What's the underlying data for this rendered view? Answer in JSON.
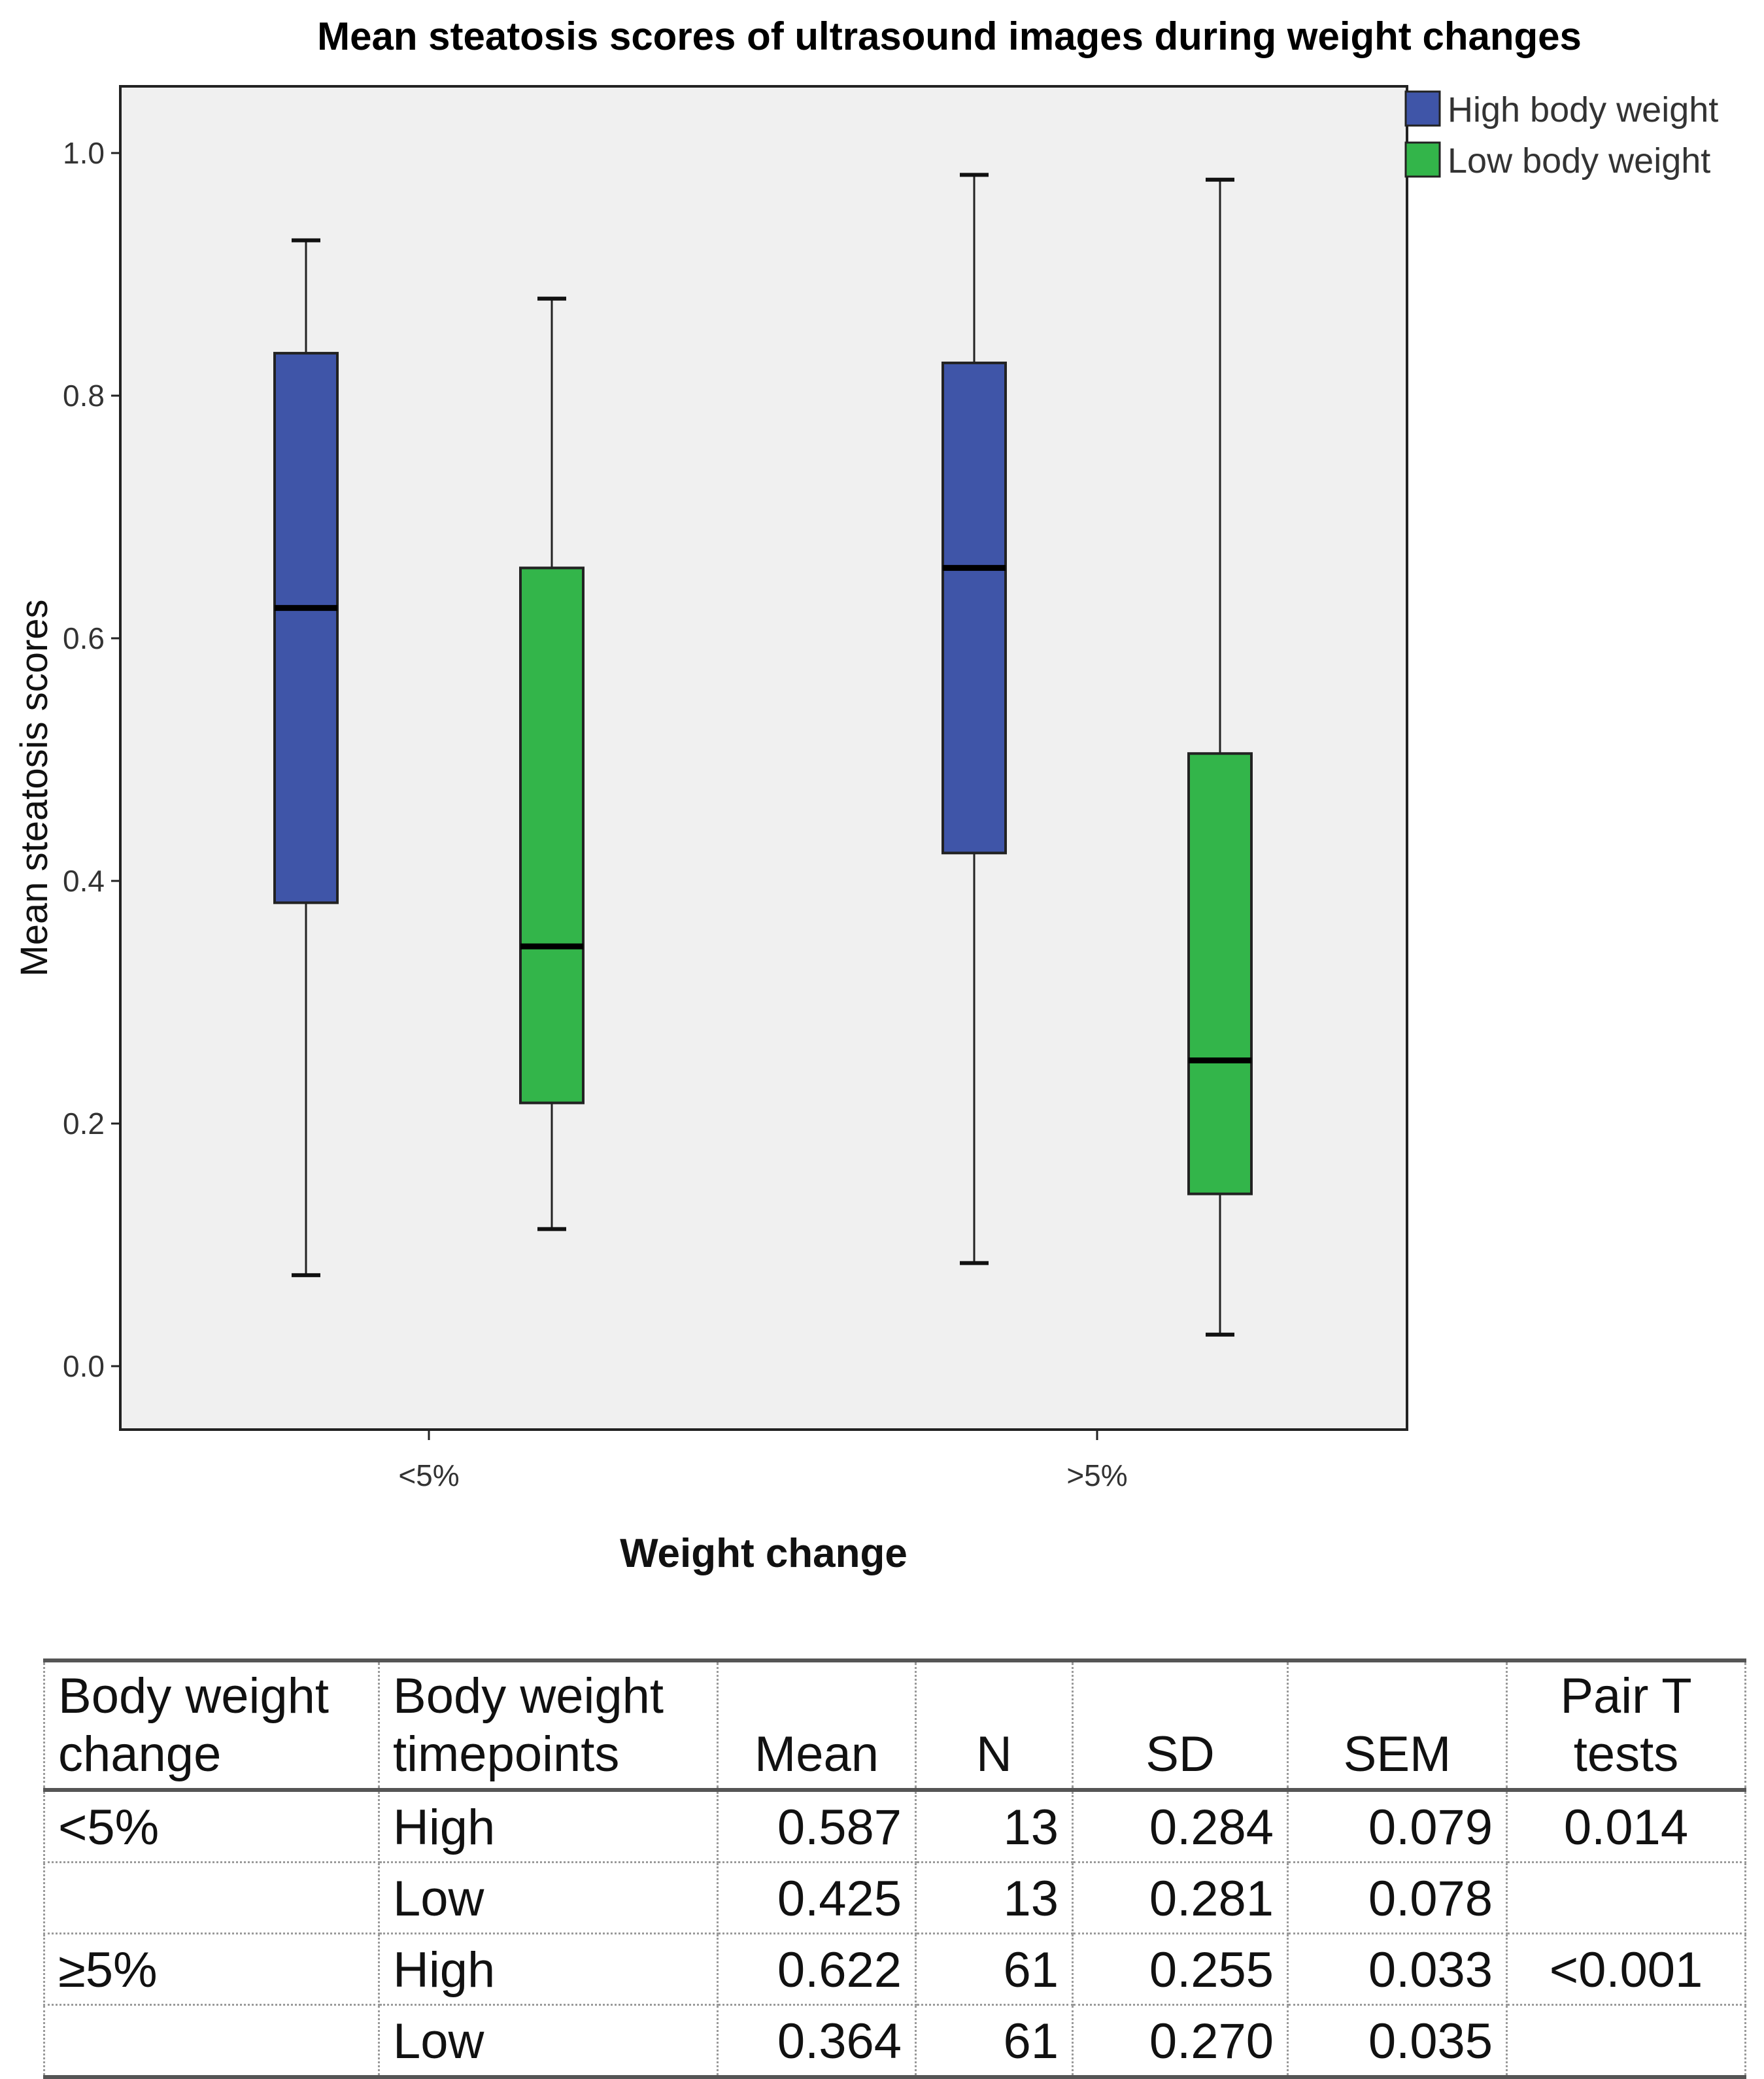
{
  "chart_data": {
    "type": "boxplot",
    "title": "Mean steatosis scores of ultrasound images during weight changes",
    "xlabel": "Weight change",
    "ylabel": "Mean steatosis scores",
    "ylim": [
      -0.05,
      1.06
    ],
    "yticks": [
      "0.0",
      "0.2",
      "0.4",
      "0.6",
      "0.8",
      "1.0"
    ],
    "ytick_values": [
      0.0,
      0.2,
      0.4,
      0.6,
      0.8,
      1.0
    ],
    "categories": [
      "<5%",
      ">5%"
    ],
    "legend": [
      {
        "name": "High body weight",
        "color": "#3f55a8"
      },
      {
        "name": "Low body weight",
        "color": "#33b54a"
      }
    ],
    "series": [
      {
        "name": "High body weight",
        "color": "#3f55a8",
        "boxes": [
          {
            "category": "<5%",
            "min": 0.075,
            "q1": 0.382,
            "median": 0.625,
            "q3": 0.835,
            "max": 0.928
          },
          {
            "category": ">5%",
            "min": 0.085,
            "q1": 0.423,
            "median": 0.658,
            "q3": 0.827,
            "max": 0.982
          }
        ]
      },
      {
        "name": "Low body weight",
        "color": "#33b54a",
        "boxes": [
          {
            "category": "<5%",
            "min": 0.113,
            "q1": 0.217,
            "median": 0.346,
            "q3": 0.658,
            "max": 0.88
          },
          {
            "category": ">5%",
            "min": 0.026,
            "q1": 0.142,
            "median": 0.252,
            "q3": 0.505,
            "max": 0.978
          }
        ]
      }
    ],
    "plot_background": "#f0f0f0"
  },
  "table": {
    "headers": {
      "col1": [
        "Body weight",
        "change"
      ],
      "col2": [
        "Body weight",
        "timepoints"
      ],
      "mean": "Mean",
      "n": "N",
      "sd": "SD",
      "sem": "SEM",
      "pair": [
        "Pair T",
        "tests"
      ]
    },
    "rows": [
      {
        "change": "<5%",
        "timepoint": "High",
        "mean": "0.587",
        "n": "13",
        "sd": "0.284",
        "sem": "0.079",
        "pair": "0.014"
      },
      {
        "change": "",
        "timepoint": "Low",
        "mean": "0.425",
        "n": "13",
        "sd": "0.281",
        "sem": "0.078",
        "pair": ""
      },
      {
        "change": "≥5%",
        "timepoint": "High",
        "mean": "0.622",
        "n": "61",
        "sd": "0.255",
        "sem": "0.033",
        "pair": "<0.001"
      },
      {
        "change": "",
        "timepoint": "Low",
        "mean": "0.364",
        "n": "61",
        "sd": "0.270",
        "sem": "0.035",
        "pair": ""
      }
    ]
  }
}
